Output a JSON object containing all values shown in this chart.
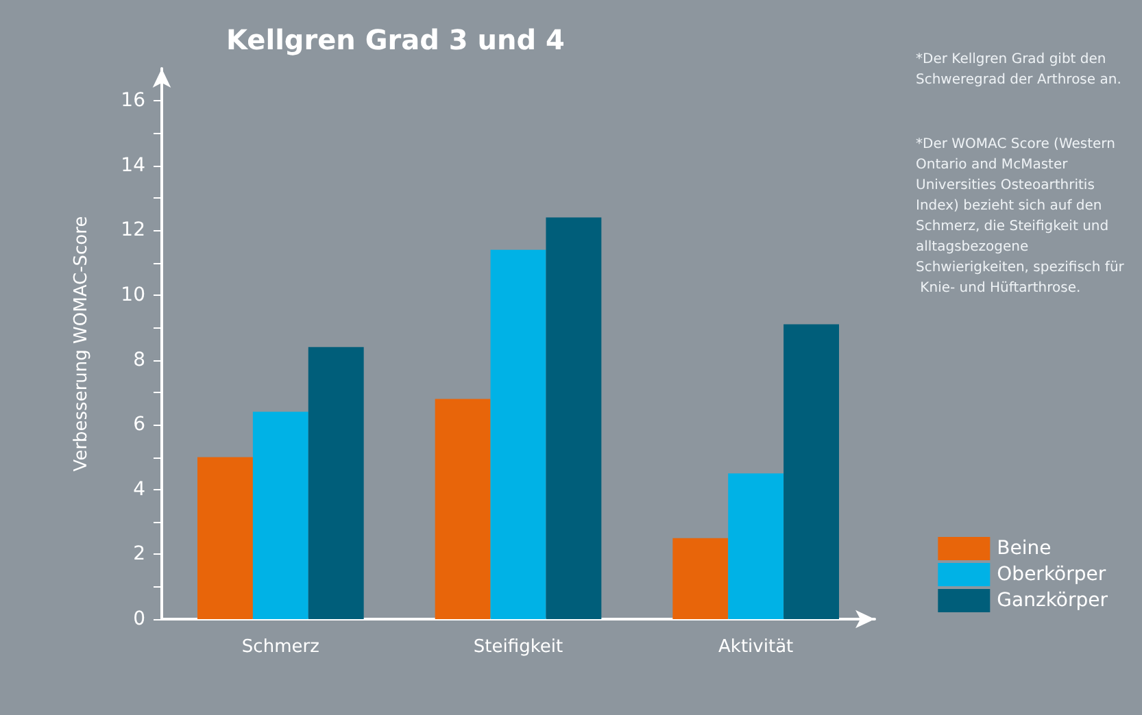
{
  "chart_data": {
    "type": "bar",
    "title": "Kellgren Grad 3 und 4",
    "ylabel": "Verbesserung WOMAC-Score",
    "categories": [
      "Schmerz",
      "Steifigkeit",
      "Aktivität"
    ],
    "series": [
      {
        "name": "Beine",
        "color": "#e8650a",
        "values": [
          5.0,
          6.8,
          2.5
        ]
      },
      {
        "name": "Oberkörper",
        "color": "#00b2e6",
        "values": [
          6.4,
          11.4,
          4.5
        ]
      },
      {
        "name": "Ganzkörper",
        "color": "#005e7a",
        "values": [
          8.4,
          12.4,
          9.1
        ]
      }
    ],
    "ylim": [
      0,
      17
    ],
    "yticks": [
      0,
      {
        "value": 1,
        "label": null
      },
      2,
      {
        "value": 3,
        "label": null
      },
      4,
      {
        "value": 5,
        "label": null
      },
      6,
      {
        "value": 7,
        "label": null
      },
      8,
      {
        "value": 9,
        "label": null
      },
      10,
      {
        "value": 11,
        "label": null
      },
      12,
      {
        "value": 13,
        "label": null
      },
      14,
      {
        "value": 15,
        "label": null
      },
      16
    ],
    "grid": false,
    "legend": "bottom right",
    "annotations": [
      "*Der Kellgren Grad gibt den Schweregrad der Arthrose an.",
      "*Der WOMAC Score (Western Ontario and McMaster Universities Osteoarthritis Index) bezieht sich auf den Schmerz, die Steifigkeit und alltagsbezogene Schwierigkeiten, spezifisch für Knie- und Hüftarthrose."
    ]
  }
}
